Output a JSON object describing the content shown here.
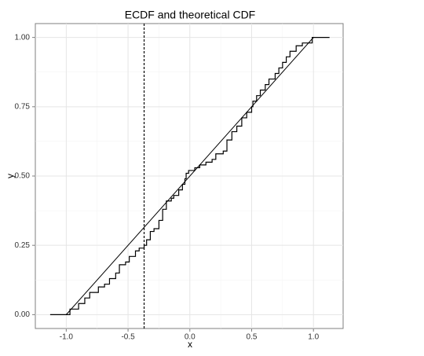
{
  "chart_data": {
    "type": "step",
    "title": "ECDF and theoretical CDF",
    "x_label": "x",
    "y_label": "y",
    "xlim": [
      -1.25,
      1.24
    ],
    "ylim": [
      -0.05,
      1.05
    ],
    "xticks": [
      {
        "value": -1,
        "label": "-1.0"
      },
      {
        "value": -0.5,
        "label": "-0.5"
      },
      {
        "value": 0,
        "label": "0.0"
      },
      {
        "value": 0.5,
        "label": "0.5"
      },
      {
        "value": 1,
        "label": "1.0"
      }
    ],
    "yticks": [
      {
        "value": 0,
        "label": "0.00"
      },
      {
        "value": 0.25,
        "label": "0.25"
      },
      {
        "value": 0.5,
        "label": "0.50"
      },
      {
        "value": 0.75,
        "label": "0.75"
      },
      {
        "value": 1,
        "label": "1.00"
      }
    ],
    "grid": true,
    "minor_grid": true,
    "series": [
      {
        "name": "ECDF",
        "color": "#000000",
        "kind": "step",
        "x": [
          -1.13,
          -0.97,
          -0.9,
          -0.85,
          -0.81,
          -0.74,
          -0.69,
          -0.65,
          -0.6,
          -0.57,
          -0.52,
          -0.49,
          -0.44,
          -0.41,
          -0.37,
          -0.35,
          -0.32,
          -0.29,
          -0.25,
          -0.22,
          -0.19,
          -0.15,
          -0.13,
          -0.09,
          -0.06,
          -0.04,
          -0.03,
          -0.01,
          0.04,
          0.08,
          0.13,
          0.18,
          0.21,
          0.27,
          0.3,
          0.34,
          0.38,
          0.42,
          0.46,
          0.5,
          0.51,
          0.54,
          0.57,
          0.61,
          0.64,
          0.69,
          0.72,
          0.75,
          0.78,
          0.81,
          0.86,
          0.91,
          0.99,
          1.13
        ],
        "values": [
          0,
          0.02,
          0.04,
          0.06,
          0.08,
          0.1,
          0.11,
          0.13,
          0.15,
          0.18,
          0.19,
          0.21,
          0.23,
          0.24,
          0.25,
          0.27,
          0.3,
          0.31,
          0.34,
          0.38,
          0.41,
          0.42,
          0.43,
          0.45,
          0.47,
          0.49,
          0.51,
          0.52,
          0.53,
          0.54,
          0.55,
          0.56,
          0.58,
          0.59,
          0.63,
          0.66,
          0.68,
          0.71,
          0.73,
          0.75,
          0.77,
          0.79,
          0.81,
          0.83,
          0.85,
          0.87,
          0.89,
          0.91,
          0.93,
          0.95,
          0.97,
          0.98,
          1,
          1
        ]
      },
      {
        "name": "theoretical CDF",
        "color": "#000000",
        "kind": "line",
        "x": [
          -1,
          1
        ],
        "values": [
          0,
          1
        ]
      }
    ],
    "vline": {
      "x": -0.37,
      "color": "#000000",
      "dashed": true
    }
  }
}
